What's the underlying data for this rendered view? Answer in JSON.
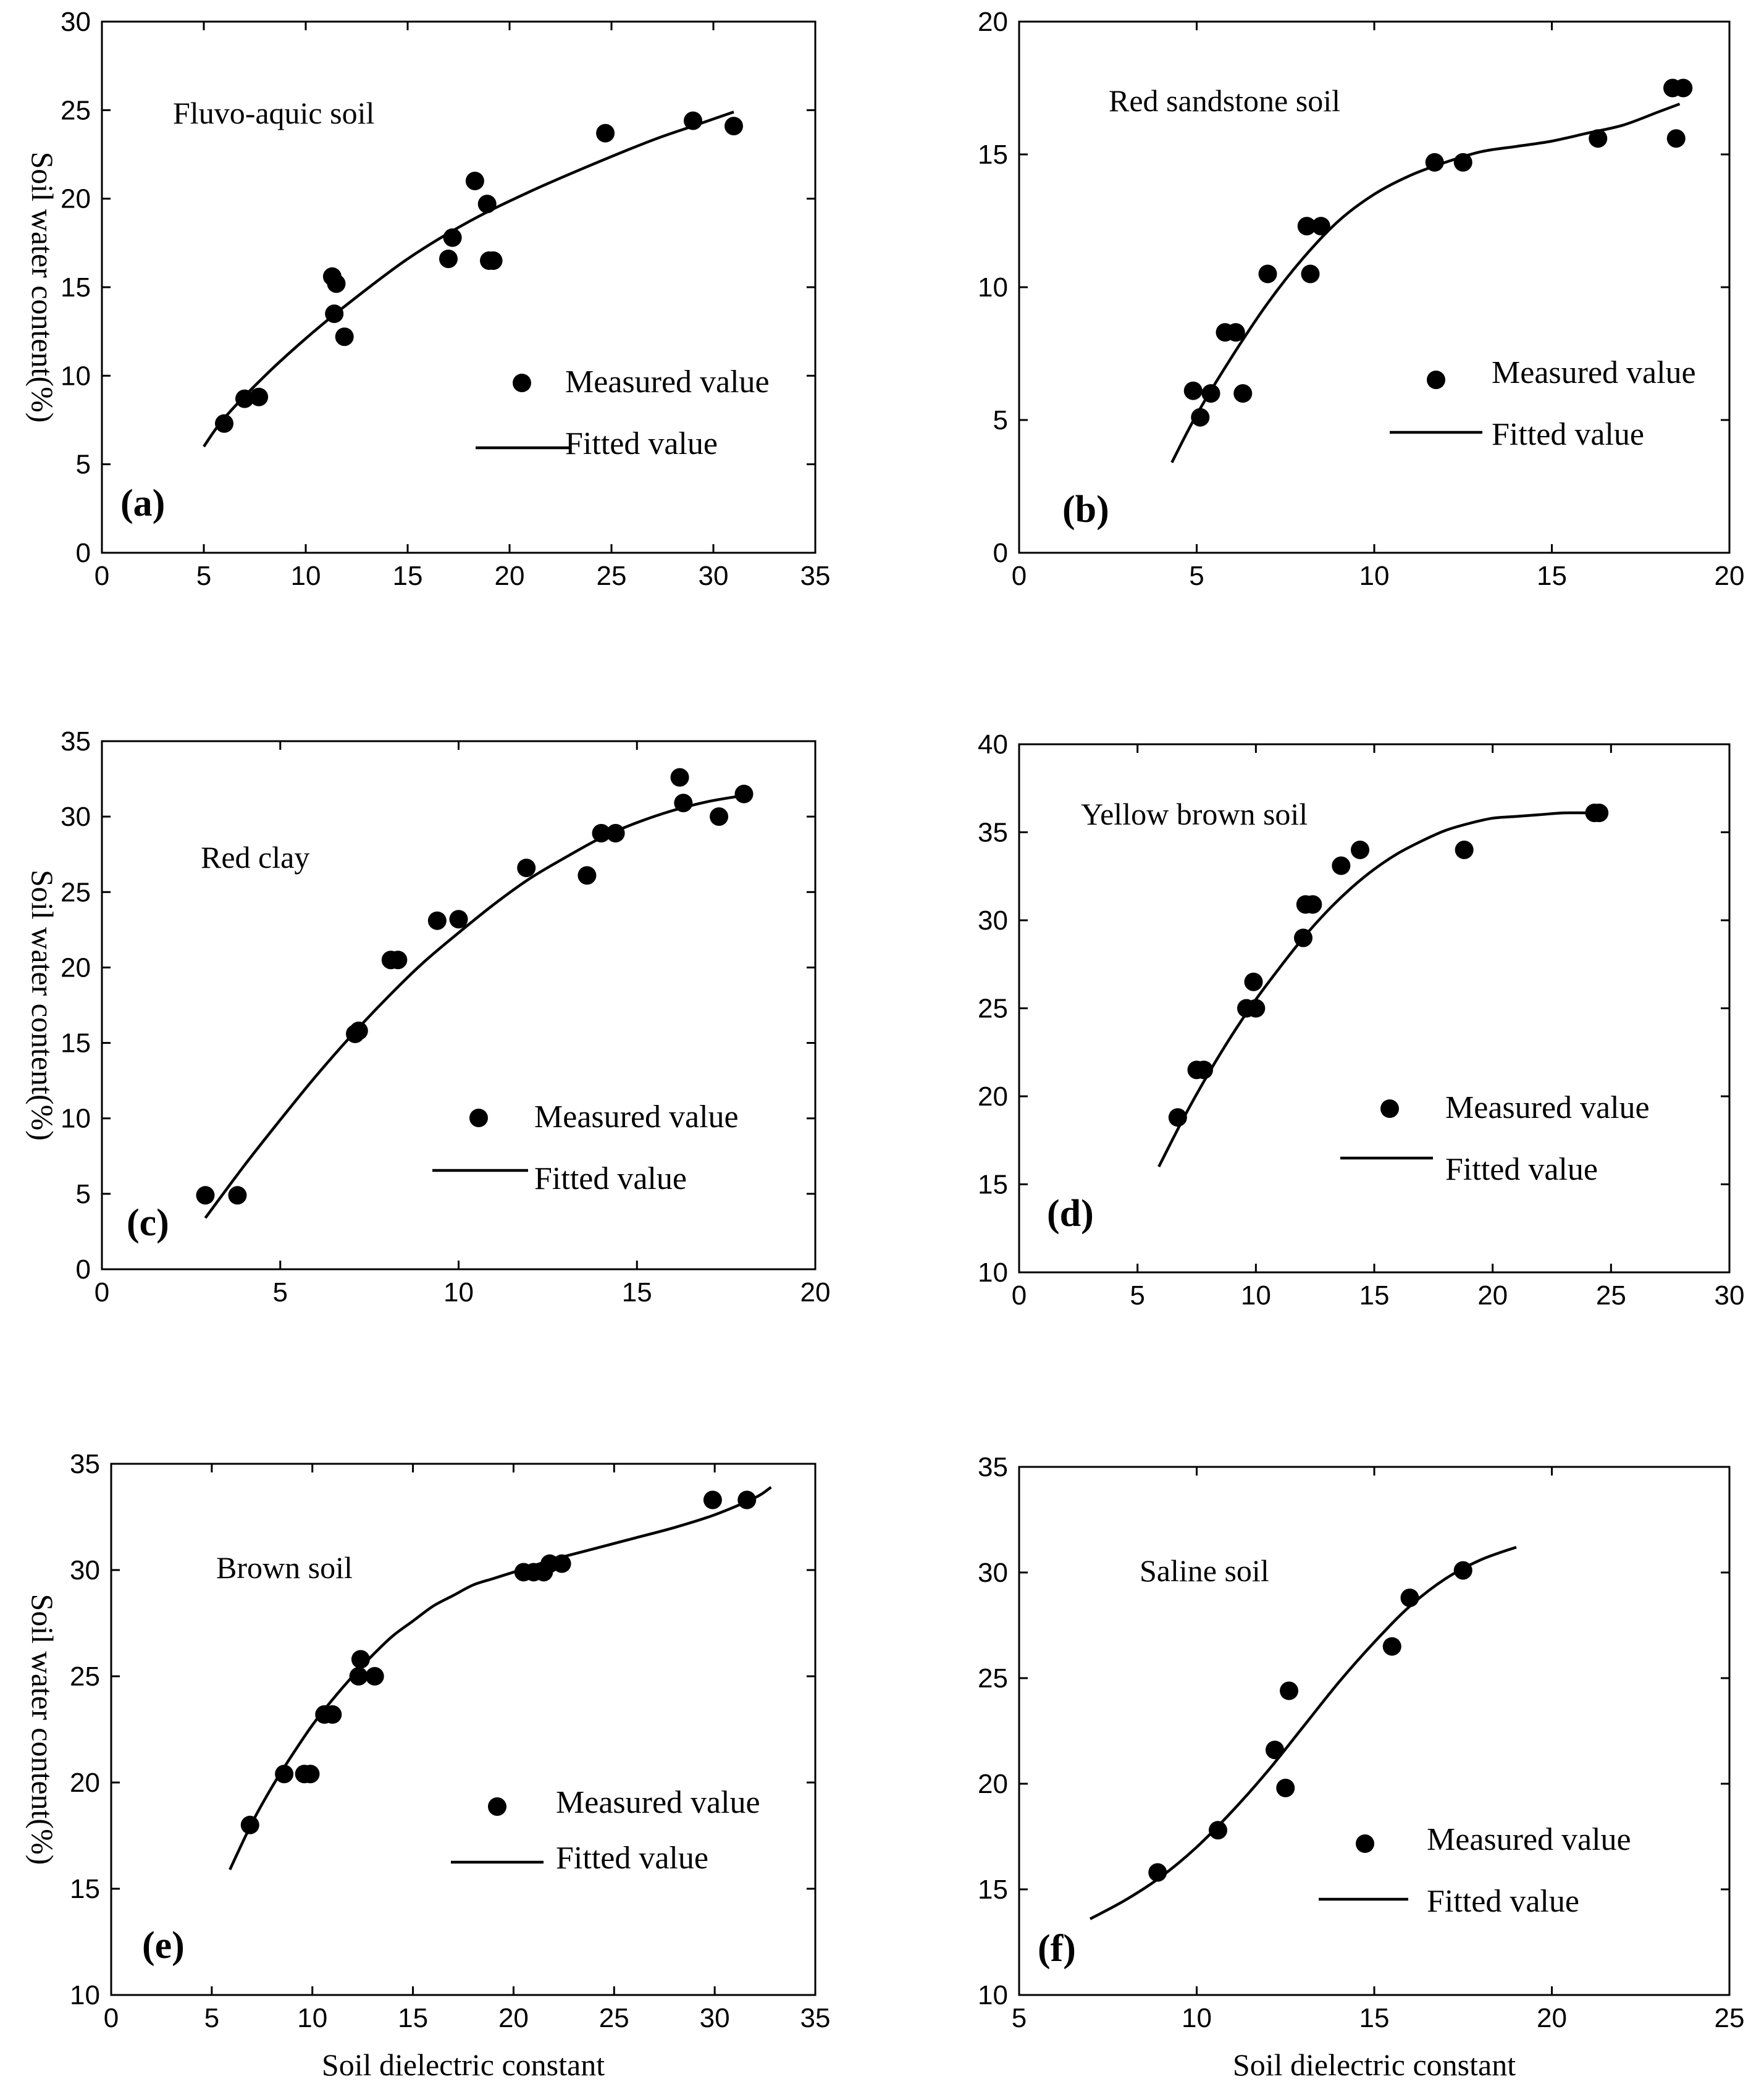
{
  "figure": {
    "ylabel": "Soil water content(%)",
    "xlabel": "Soil dielectric constant",
    "legend_measured": "Measured value",
    "legend_fitted": "Fitted value"
  },
  "chart_data": [
    {
      "type": "scatter",
      "panel": "(a)",
      "title": "Fluvo-aquic soil",
      "xlim": [
        0,
        35
      ],
      "ylim": [
        0,
        30
      ],
      "xticks": [
        0,
        5,
        10,
        15,
        20,
        25,
        30,
        35
      ],
      "yticks": [
        0,
        5,
        10,
        15,
        20,
        25,
        30
      ],
      "ylabel": "Soil water content(%)",
      "xlabel": "",
      "series": [
        {
          "name": "Measured value",
          "x": [
            6,
            7,
            7.7,
            11.3,
            11.5,
            11.4,
            11.9,
            17,
            17.2,
            18.3,
            18.9,
            19,
            19.2,
            24.7,
            29,
            31
          ],
          "y": [
            7.3,
            8.7,
            8.8,
            15.6,
            15.2,
            13.5,
            12.2,
            16.6,
            17.8,
            21,
            19.7,
            16.5,
            16.5,
            23.7,
            24.4,
            24.1
          ]
        },
        {
          "name": "Fitted value",
          "x": [
            5,
            6,
            8,
            10,
            12,
            15,
            18,
            21,
            24,
            27,
            29,
            31
          ],
          "y": [
            6,
            7.6,
            10,
            12.1,
            14,
            16.6,
            18.7,
            20.4,
            21.9,
            23.3,
            24.1,
            24.9
          ]
        }
      ]
    },
    {
      "type": "scatter",
      "panel": "(b)",
      "title": "Red sandstone soil",
      "xlim": [
        0,
        20
      ],
      "ylim": [
        0,
        20
      ],
      "xticks": [
        0,
        5,
        10,
        15,
        20
      ],
      "yticks": [
        0,
        5,
        10,
        15,
        20
      ],
      "ylabel": "",
      "xlabel": "",
      "series": [
        {
          "name": "Measured value",
          "x": [
            4.9,
            5.1,
            5.4,
            5.8,
            6.1,
            6.3,
            7,
            8.1,
            8.2,
            8.5,
            11.7,
            12.5,
            16.3,
            18.4,
            18.7,
            18.5
          ],
          "y": [
            6.1,
            5.1,
            6,
            8.3,
            8.3,
            6,
            10.5,
            12.3,
            10.5,
            12.3,
            14.7,
            14.7,
            15.6,
            17.5,
            17.5,
            15.6
          ]
        },
        {
          "name": "Fitted value",
          "x": [
            4.3,
            5,
            6,
            7,
            8,
            9,
            10,
            11,
            12,
            13,
            14,
            15,
            16,
            17,
            18,
            18.6
          ],
          "y": [
            3.4,
            5.2,
            7.4,
            9.4,
            11.1,
            12.5,
            13.5,
            14.2,
            14.7,
            15.1,
            15.3,
            15.5,
            15.8,
            16.1,
            16.6,
            16.9
          ]
        }
      ]
    },
    {
      "type": "scatter",
      "panel": "(c)",
      "title": "Red clay",
      "xlim": [
        0,
        20
      ],
      "ylim": [
        0,
        35
      ],
      "xticks": [
        0,
        5,
        10,
        15,
        20
      ],
      "yticks": [
        0,
        5,
        10,
        15,
        20,
        25,
        30,
        35
      ],
      "ylabel": "Soil water content(%)",
      "xlabel": "",
      "series": [
        {
          "name": "Measured value",
          "x": [
            2.9,
            3.8,
            7.1,
            7.2,
            8.1,
            8.3,
            9.4,
            10,
            11.9,
            13.6,
            14,
            14.4,
            16.2,
            16.3,
            17.3,
            18
          ],
          "y": [
            4.9,
            4.9,
            15.6,
            15.8,
            20.5,
            20.5,
            23.1,
            23.2,
            26.6,
            26.1,
            28.9,
            28.9,
            32.6,
            30.9,
            30,
            31.5
          ]
        },
        {
          "name": "Fitted value",
          "x": [
            2.9,
            4,
            5,
            6,
            7,
            8,
            9,
            10,
            11,
            12,
            13,
            14,
            15,
            16,
            17,
            18
          ],
          "y": [
            3.4,
            6.9,
            9.9,
            12.8,
            15.5,
            18,
            20.3,
            22.3,
            24.2,
            25.9,
            27.3,
            28.6,
            29.6,
            30.4,
            31,
            31.4
          ]
        }
      ]
    },
    {
      "type": "scatter",
      "panel": "(d)",
      "title": "Yellow brown soil",
      "xlim": [
        0,
        30
      ],
      "ylim": [
        10,
        40
      ],
      "xticks": [
        0,
        5,
        10,
        15,
        20,
        25,
        30
      ],
      "yticks": [
        10,
        15,
        20,
        25,
        30,
        35,
        40
      ],
      "ylabel": "",
      "xlabel": "",
      "series": [
        {
          "name": "Measured value",
          "x": [
            6.7,
            7.5,
            7.8,
            9.6,
            9.9,
            10,
            12,
            12.1,
            12.4,
            13.6,
            14.4,
            18.8,
            24.3,
            24.5
          ],
          "y": [
            18.8,
            21.5,
            21.5,
            25,
            26.5,
            25,
            29,
            30.9,
            30.9,
            33.1,
            34,
            34,
            36.1,
            36.1
          ]
        },
        {
          "name": "Fitted value",
          "x": [
            5.9,
            7,
            8,
            9,
            10,
            11,
            12,
            13,
            14,
            15,
            16,
            17,
            18,
            19,
            20,
            21,
            22,
            23,
            24,
            24.5
          ],
          "y": [
            16,
            18.9,
            21.3,
            23.5,
            25.5,
            27.3,
            29,
            30.5,
            31.8,
            32.9,
            33.8,
            34.5,
            35.1,
            35.5,
            35.8,
            35.9,
            36,
            36.1,
            36.1,
            36.1
          ]
        }
      ]
    },
    {
      "type": "scatter",
      "panel": "(e)",
      "title": "Brown soil",
      "xlim": [
        0,
        35
      ],
      "ylim": [
        10,
        35
      ],
      "xticks": [
        0,
        5,
        10,
        15,
        20,
        25,
        30,
        35
      ],
      "yticks": [
        10,
        15,
        20,
        25,
        30,
        35
      ],
      "ylabel": "Soil water content(%)",
      "xlabel": "Soil dielectric constant",
      "series": [
        {
          "name": "Measured value",
          "x": [
            6.9,
            8.6,
            9.6,
            9.9,
            10.6,
            11,
            12.3,
            12.4,
            13.1,
            20.5,
            21,
            21.5,
            21.8,
            22.4,
            29.9,
            31.6
          ],
          "y": [
            18,
            20.4,
            20.4,
            20.4,
            23.2,
            23.2,
            25,
            25.8,
            25,
            29.9,
            29.9,
            29.9,
            30.3,
            30.3,
            33.3,
            33.3
          ]
        },
        {
          "name": "Fitted value",
          "x": [
            5.9,
            7,
            8,
            9,
            10,
            11,
            12,
            13,
            14,
            15,
            16,
            17,
            18,
            19,
            20,
            22,
            24,
            26,
            28,
            30,
            32,
            32.8
          ],
          "y": [
            15.9,
            18.1,
            19.8,
            21.3,
            22.7,
            23.9,
            25,
            26,
            26.9,
            27.6,
            28.3,
            28.8,
            29.3,
            29.6,
            29.9,
            30.5,
            31,
            31.5,
            32,
            32.6,
            33.4,
            33.9
          ]
        }
      ]
    },
    {
      "type": "scatter",
      "panel": "(f)",
      "title": "Saline soil",
      "xlim": [
        5,
        25
      ],
      "ylim": [
        10,
        35
      ],
      "xticks": [
        5,
        10,
        15,
        20,
        25
      ],
      "yticks": [
        10,
        15,
        20,
        25,
        30,
        35
      ],
      "ylabel": "",
      "xlabel": "Soil dielectric constant",
      "series": [
        {
          "name": "Measured value",
          "x": [
            8.9,
            10.6,
            12.2,
            12.5,
            12.6,
            15.5,
            16,
            17.5
          ],
          "y": [
            15.8,
            17.8,
            21.6,
            19.8,
            24.4,
            26.5,
            28.8,
            30.1
          ]
        },
        {
          "name": "Fitted value",
          "x": [
            7,
            8,
            9,
            10,
            11,
            12,
            13,
            14,
            15,
            16,
            17,
            18,
            19
          ],
          "y": [
            13.6,
            14.5,
            15.6,
            17,
            18.7,
            20.6,
            22.7,
            24.8,
            26.7,
            28.4,
            29.7,
            30.6,
            31.2
          ]
        }
      ]
    }
  ]
}
